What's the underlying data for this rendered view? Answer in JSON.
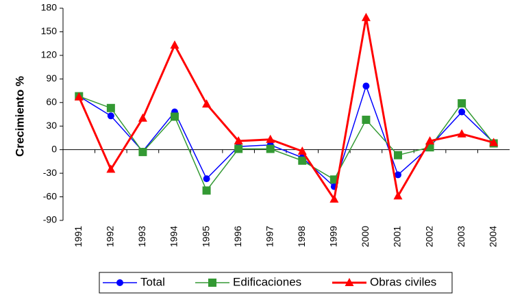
{
  "chart_data": {
    "type": "line",
    "y_label": "Crecimiento %",
    "categories": [
      "1991",
      "1992",
      "1993",
      "1994",
      "1995",
      "1996",
      "1997",
      "1998",
      "1999",
      "2000",
      "2001",
      "2002",
      "2003",
      "2004"
    ],
    "series": [
      {
        "name": "Total",
        "color": "#0000ff",
        "marker": "circle",
        "values": [
          68,
          43,
          -2,
          48,
          -37,
          4,
          6,
          -10,
          -47,
          81,
          -32,
          4,
          48,
          9
        ]
      },
      {
        "name": "Edificaciones",
        "color": "#339933",
        "marker": "square",
        "values": [
          68,
          53,
          -3,
          42,
          -52,
          1,
          1,
          -14,
          -38,
          38,
          -7,
          3,
          59,
          8
        ]
      },
      {
        "name": "Obras civiles",
        "color": "#ff0000",
        "marker": "triangle",
        "values": [
          67,
          -25,
          40,
          133,
          58,
          11,
          13,
          -2,
          -63,
          168,
          -59,
          11,
          20,
          9
        ]
      }
    ],
    "ylim": [
      -90,
      180
    ],
    "yticks": [
      -90,
      -60,
      -30,
      0,
      30,
      60,
      90,
      120,
      150,
      180
    ]
  }
}
